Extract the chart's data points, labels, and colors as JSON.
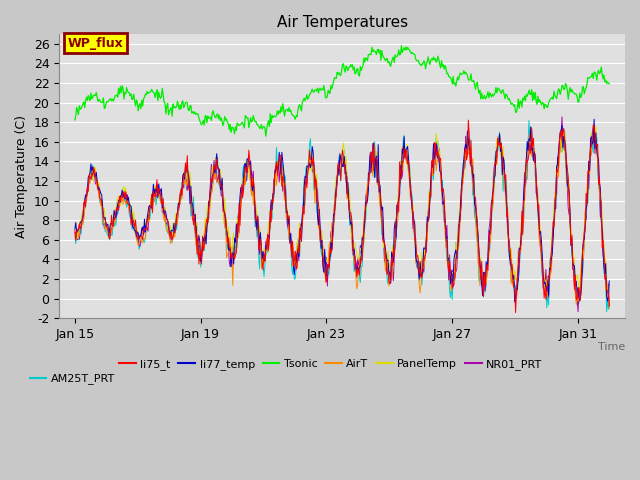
{
  "title": "Air Temperatures",
  "xlabel": "Time",
  "ylabel": "Air Temperature (C)",
  "ylim": [
    -2,
    27
  ],
  "yticks": [
    -2,
    0,
    2,
    4,
    6,
    8,
    10,
    12,
    14,
    16,
    18,
    20,
    22,
    24,
    26
  ],
  "xlim_start": 14.5,
  "xlim_end": 32.5,
  "xtick_positions": [
    15,
    19,
    23,
    27,
    31
  ],
  "xtick_labels": [
    "Jan 15",
    "Jan 19",
    "Jan 23",
    "Jan 27",
    "Jan 31"
  ],
  "wp_flux_label": "WP_flux",
  "wp_flux_box_color": "#FFFF00",
  "wp_flux_box_edge": "#8B0000",
  "wp_flux_text_color": "#8B0000",
  "series_colors": {
    "li75_t": "#FF0000",
    "li77_temp": "#0000CC",
    "Tsonic": "#00EE00",
    "AirT": "#FF8800",
    "PanelTemp": "#DDDD00",
    "NR01_PRT": "#AA00AA",
    "AM25T_PRT": "#00CCCC"
  },
  "legend_labels": [
    "li75_t",
    "li77_temp",
    "Tsonic",
    "AirT",
    "PanelTemp",
    "NR01_PRT",
    "AM25T_PRT"
  ],
  "bg_color": "#C8C8C8",
  "plot_bg_color": "#E0E0E0",
  "grid_color": "#FFFFFF",
  "n_points": 600
}
